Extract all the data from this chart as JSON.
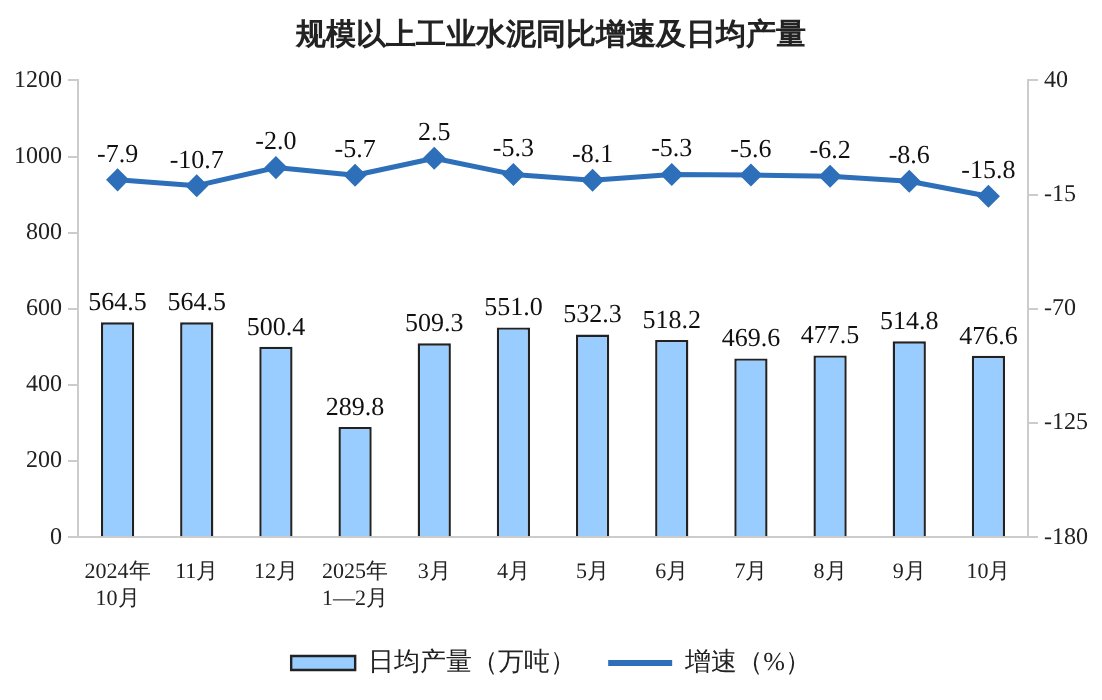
{
  "chart_data": {
    "type": "bar",
    "title": "规模以上工业水泥同比增速及日均产量",
    "categories": [
      "2024年\n10月",
      "11月",
      "12月",
      "2025年\n1—2月",
      "3月",
      "4月",
      "5月",
      "6月",
      "7月",
      "8月",
      "9月",
      "10月"
    ],
    "series": [
      {
        "name": "日均产量（万吨）",
        "color": "#99ccff",
        "values": [
          564.5,
          564.5,
          500.4,
          289.8,
          509.3,
          551.0,
          532.3,
          518.2,
          469.6,
          477.5,
          514.8,
          476.6
        ],
        "value_labels": [
          "564.5",
          "564.5",
          "500.4",
          "289.8",
          "509.3",
          "551.0",
          "532.3",
          "518.2",
          "469.6",
          "477.5",
          "514.8",
          "476.6"
        ]
      },
      {
        "name": "增速（%）",
        "type": "line",
        "axis": "y2",
        "color": "#2e6fba",
        "marker": "diamond",
        "values": [
          -7.9,
          -10.7,
          -2.0,
          -5.7,
          2.5,
          -5.3,
          -8.1,
          -5.3,
          -5.6,
          -6.2,
          -8.6,
          -15.8
        ],
        "value_labels": [
          "-7.9",
          "-10.7",
          "-2.0",
          "-5.7",
          "2.5",
          "-5.3",
          "-8.1",
          "-5.3",
          "-5.6",
          "-6.2",
          "-8.6",
          "-15.8"
        ]
      }
    ],
    "ylim": [
      0,
      1200
    ],
    "yticks": [
      0,
      200,
      400,
      600,
      800,
      1000,
      1200
    ],
    "y2lim": [
      -180,
      40
    ],
    "y2ticks": [
      -180,
      -125,
      -70,
      -15,
      40
    ],
    "grid": false,
    "legend": "bottom"
  }
}
